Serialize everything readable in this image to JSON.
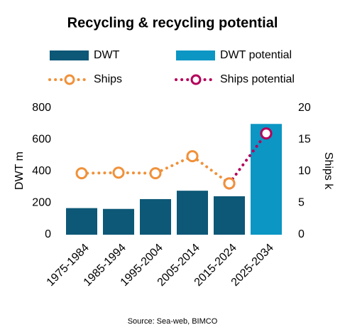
{
  "chart_data": {
    "type": "bar",
    "title": "Recycling & recycling potential",
    "categories": [
      "1975-1984",
      "1985-1994",
      "1995-2004",
      "2005-2014",
      "2015-2024",
      "2025-2034"
    ],
    "series": [
      {
        "name": "DWT",
        "type": "bar",
        "color": "#0d5877",
        "values": [
          168,
          163,
          225,
          278,
          243,
          null
        ]
      },
      {
        "name": "DWT potential",
        "type": "bar",
        "color": "#0b96c4",
        "values": [
          null,
          null,
          null,
          null,
          null,
          700
        ]
      },
      {
        "name": "Ships",
        "type": "line",
        "axis": "y2",
        "color": "#f0913a",
        "values": [
          9.7,
          9.8,
          9.7,
          12.4,
          8.1,
          null
        ]
      },
      {
        "name": "Ships potential",
        "type": "line",
        "axis": "y2",
        "color": "#b5005b",
        "values": [
          null,
          null,
          null,
          null,
          8.1,
          16.0
        ]
      }
    ],
    "ylabel": "DWT m",
    "y2label": "Ships k",
    "ylim": [
      0,
      800
    ],
    "yticks": [
      0,
      200,
      400,
      600,
      800
    ],
    "y2lim": [
      0,
      20
    ],
    "y2ticks": [
      0,
      5,
      10,
      15,
      20
    ],
    "source": "Source: Sea-web, BIMCO"
  }
}
